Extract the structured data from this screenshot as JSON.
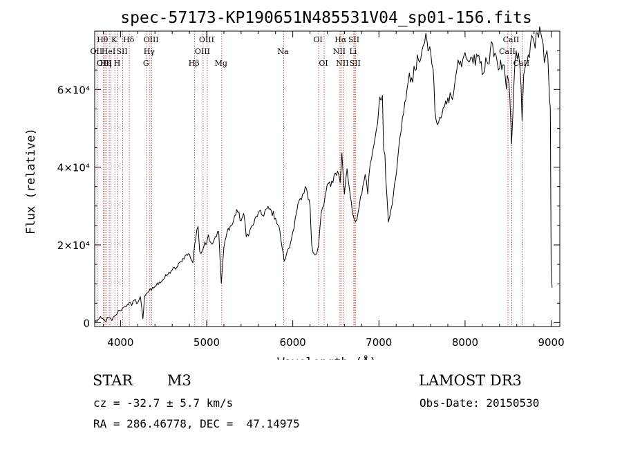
{
  "chart_data": {
    "type": "line",
    "title": "spec-57173-KP190651N485531V04_sp01-156.fits",
    "xlabel": "Wavelength (Å)",
    "ylabel": "Flux (relative)",
    "xlim": [
      3700,
      9100
    ],
    "ylim": [
      -1000,
      75000
    ],
    "xticks": [
      {
        "value": 4000,
        "label": "4000"
      },
      {
        "value": 5000,
        "label": "5000"
      },
      {
        "value": 6000,
        "label": "6000"
      },
      {
        "value": 7000,
        "label": "7000"
      },
      {
        "value": 8000,
        "label": "8000"
      },
      {
        "value": 9000,
        "label": "9000"
      }
    ],
    "yticks": [
      {
        "value": 0,
        "label": "0"
      },
      {
        "value": 20000,
        "label": "2×10⁴"
      },
      {
        "value": 40000,
        "label": "4×10⁴"
      },
      {
        "value": 60000,
        "label": "6×10⁴"
      }
    ],
    "series": [
      {
        "name": "spectrum",
        "points": [
          [
            3700,
            100
          ],
          [
            3740,
            800
          ],
          [
            3780,
            1100
          ],
          [
            3820,
            400
          ],
          [
            3860,
            1200
          ],
          [
            3900,
            500
          ],
          [
            3930,
            1700
          ],
          [
            3960,
            2300
          ],
          [
            3990,
            3200
          ],
          [
            4020,
            3600
          ],
          [
            4050,
            4100
          ],
          [
            4080,
            4700
          ],
          [
            4100,
            5200
          ],
          [
            4130,
            4400
          ],
          [
            4160,
            5800
          ],
          [
            4200,
            5100
          ],
          [
            4230,
            6700
          ],
          [
            4260,
            1000
          ],
          [
            4280,
            6900
          ],
          [
            4300,
            7600
          ],
          [
            4330,
            8100
          ],
          [
            4360,
            8400
          ],
          [
            4400,
            9300
          ],
          [
            4450,
            10400
          ],
          [
            4500,
            11200
          ],
          [
            4550,
            12400
          ],
          [
            4600,
            13600
          ],
          [
            4650,
            14100
          ],
          [
            4700,
            15700
          ],
          [
            4750,
            17200
          ],
          [
            4800,
            17600
          ],
          [
            4840,
            15400
          ],
          [
            4860,
            20100
          ],
          [
            4900,
            24800
          ],
          [
            4920,
            18200
          ],
          [
            4950,
            18600
          ],
          [
            4980,
            20800
          ],
          [
            5000,
            20400
          ],
          [
            5020,
            22600
          ],
          [
            5060,
            20200
          ],
          [
            5100,
            22100
          ],
          [
            5140,
            23400
          ],
          [
            5170,
            10200
          ],
          [
            5200,
            19300
          ],
          [
            5250,
            24300
          ],
          [
            5300,
            25300
          ],
          [
            5350,
            29100
          ],
          [
            5400,
            26200
          ],
          [
            5430,
            28100
          ],
          [
            5460,
            22100
          ],
          [
            5500,
            23600
          ],
          [
            5550,
            25700
          ],
          [
            5600,
            28300
          ],
          [
            5650,
            27600
          ],
          [
            5700,
            29300
          ],
          [
            5750,
            28800
          ],
          [
            5800,
            26900
          ],
          [
            5850,
            23600
          ],
          [
            5880,
            18800
          ],
          [
            5900,
            15800
          ],
          [
            5930,
            17900
          ],
          [
            5960,
            19200
          ],
          [
            6000,
            23300
          ],
          [
            6030,
            27100
          ],
          [
            6060,
            30600
          ],
          [
            6100,
            31600
          ],
          [
            6130,
            33300
          ],
          [
            6160,
            34400
          ],
          [
            6180,
            31600
          ],
          [
            6200,
            30100
          ],
          [
            6220,
            19900
          ],
          [
            6250,
            17600
          ],
          [
            6280,
            17900
          ],
          [
            6300,
            20000
          ],
          [
            6330,
            28300
          ],
          [
            6360,
            30100
          ],
          [
            6400,
            35600
          ],
          [
            6440,
            35000
          ],
          [
            6480,
            38000
          ],
          [
            6520,
            39000
          ],
          [
            6550,
            36000
          ],
          [
            6570,
            43600
          ],
          [
            6600,
            33100
          ],
          [
            6630,
            39600
          ],
          [
            6660,
            34000
          ],
          [
            6680,
            31000
          ],
          [
            6700,
            27600
          ],
          [
            6730,
            26000
          ],
          [
            6760,
            28600
          ],
          [
            6800,
            32900
          ],
          [
            6840,
            38100
          ],
          [
            6870,
            33100
          ],
          [
            6900,
            41100
          ],
          [
            6940,
            45500
          ],
          [
            6970,
            49600
          ],
          [
            7000,
            55700
          ],
          [
            7020,
            57300
          ],
          [
            7040,
            58500
          ],
          [
            7055,
            44600
          ],
          [
            7070,
            43100
          ],
          [
            7090,
            33600
          ],
          [
            7110,
            25900
          ],
          [
            7140,
            29100
          ],
          [
            7180,
            35600
          ],
          [
            7220,
            42600
          ],
          [
            7260,
            49600
          ],
          [
            7300,
            56800
          ],
          [
            7340,
            62100
          ],
          [
            7380,
            63000
          ],
          [
            7420,
            64900
          ],
          [
            7460,
            67500
          ],
          [
            7500,
            70000
          ],
          [
            7530,
            71900
          ],
          [
            7560,
            72200
          ],
          [
            7580,
            70100
          ],
          [
            7600,
            69700
          ],
          [
            7630,
            65100
          ],
          [
            7650,
            54500
          ],
          [
            7680,
            50900
          ],
          [
            7720,
            52600
          ],
          [
            7760,
            55500
          ],
          [
            7800,
            57900
          ],
          [
            7840,
            58200
          ],
          [
            7880,
            61600
          ],
          [
            7920,
            67600
          ],
          [
            7960,
            65800
          ],
          [
            8000,
            69500
          ],
          [
            8040,
            67100
          ],
          [
            8080,
            68300
          ],
          [
            8120,
            66200
          ],
          [
            8160,
            68800
          ],
          [
            8200,
            63800
          ],
          [
            8240,
            68200
          ],
          [
            8280,
            66500
          ],
          [
            8320,
            71700
          ],
          [
            8360,
            68800
          ],
          [
            8400,
            65400
          ],
          [
            8440,
            66300
          ],
          [
            8480,
            60100
          ],
          [
            8500,
            62800
          ],
          [
            8520,
            58000
          ],
          [
            8540,
            46000
          ],
          [
            8555,
            53700
          ],
          [
            8580,
            67400
          ],
          [
            8620,
            69400
          ],
          [
            8650,
            61000
          ],
          [
            8662,
            52000
          ],
          [
            8680,
            63700
          ],
          [
            8720,
            67100
          ],
          [
            8760,
            71700
          ],
          [
            8800,
            72300
          ],
          [
            8840,
            74500
          ],
          [
            8880,
            74400
          ],
          [
            8920,
            66900
          ],
          [
            8950,
            70000
          ],
          [
            8970,
            63600
          ],
          [
            8990,
            55000
          ],
          [
            9000,
            14000
          ],
          [
            9010,
            9000
          ]
        ]
      }
    ],
    "lines": [
      {
        "wave": 3727,
        "label": "OII",
        "tier": 2
      },
      {
        "wave": 3799,
        "label": "Hθ",
        "tier": 1
      },
      {
        "wave": 3820,
        "label": "OIII",
        "tier": 3
      },
      {
        "wave": 3835,
        "label": "Hη",
        "tier": 3
      },
      {
        "wave": 3869,
        "label": "HeI",
        "tier": 2
      },
      {
        "wave": 3889,
        "label": "",
        "tier": 0
      },
      {
        "wave": 3934,
        "label": "K",
        "tier": 1
      },
      {
        "wave": 3969,
        "label": "H",
        "tier": 3
      },
      {
        "wave": 4026,
        "label": "SII",
        "tier": 2
      },
      {
        "wave": 4102,
        "label": "Hδ",
        "tier": 1
      },
      {
        "wave": 4304,
        "label": "G",
        "tier": 3
      },
      {
        "wave": 4341,
        "label": "Hγ",
        "tier": 2
      },
      {
        "wave": 4363,
        "label": "OIII",
        "tier": 1
      },
      {
        "wave": 4861,
        "label": "Hβ",
        "tier": 3
      },
      {
        "wave": 4959,
        "label": "OIII",
        "tier": 2
      },
      {
        "wave": 5007,
        "label": "OIII",
        "tier": 1
      },
      {
        "wave": 5175,
        "label": "Mg",
        "tier": 3
      },
      {
        "wave": 5894,
        "label": "Na",
        "tier": 2
      },
      {
        "wave": 6300,
        "label": "OI",
        "tier": 1
      },
      {
        "wave": 6364,
        "label": "OI",
        "tier": 3
      },
      {
        "wave": 6548,
        "label": "NII",
        "tier": 2
      },
      {
        "wave": 6563,
        "label": "Hα",
        "tier": 1
      },
      {
        "wave": 6584,
        "label": "NII",
        "tier": 3
      },
      {
        "wave": 6708,
        "label": "Li",
        "tier": 2
      },
      {
        "wave": 6717,
        "label": "SII",
        "tier": 1
      },
      {
        "wave": 6731,
        "label": "SII",
        "tier": 3
      },
      {
        "wave": 8498,
        "label": "CaII",
        "tier": 2
      },
      {
        "wave": 8542,
        "label": "CaII",
        "tier": 1
      },
      {
        "wave": 8662,
        "label": "CaII",
        "tier": 3
      }
    ],
    "colors": {
      "spectrum": "#000000",
      "lines": "#b22222",
      "axes": "#000000"
    }
  },
  "info": {
    "object_class": "STAR",
    "subclass": "M3",
    "survey": "LAMOST DR3",
    "redshift": "cz = -32.7 ± 5.7 km/s",
    "obs_date": "Obs-Date: 20150530",
    "coords": "RA = 286.46778, DEC =  47.14975"
  }
}
